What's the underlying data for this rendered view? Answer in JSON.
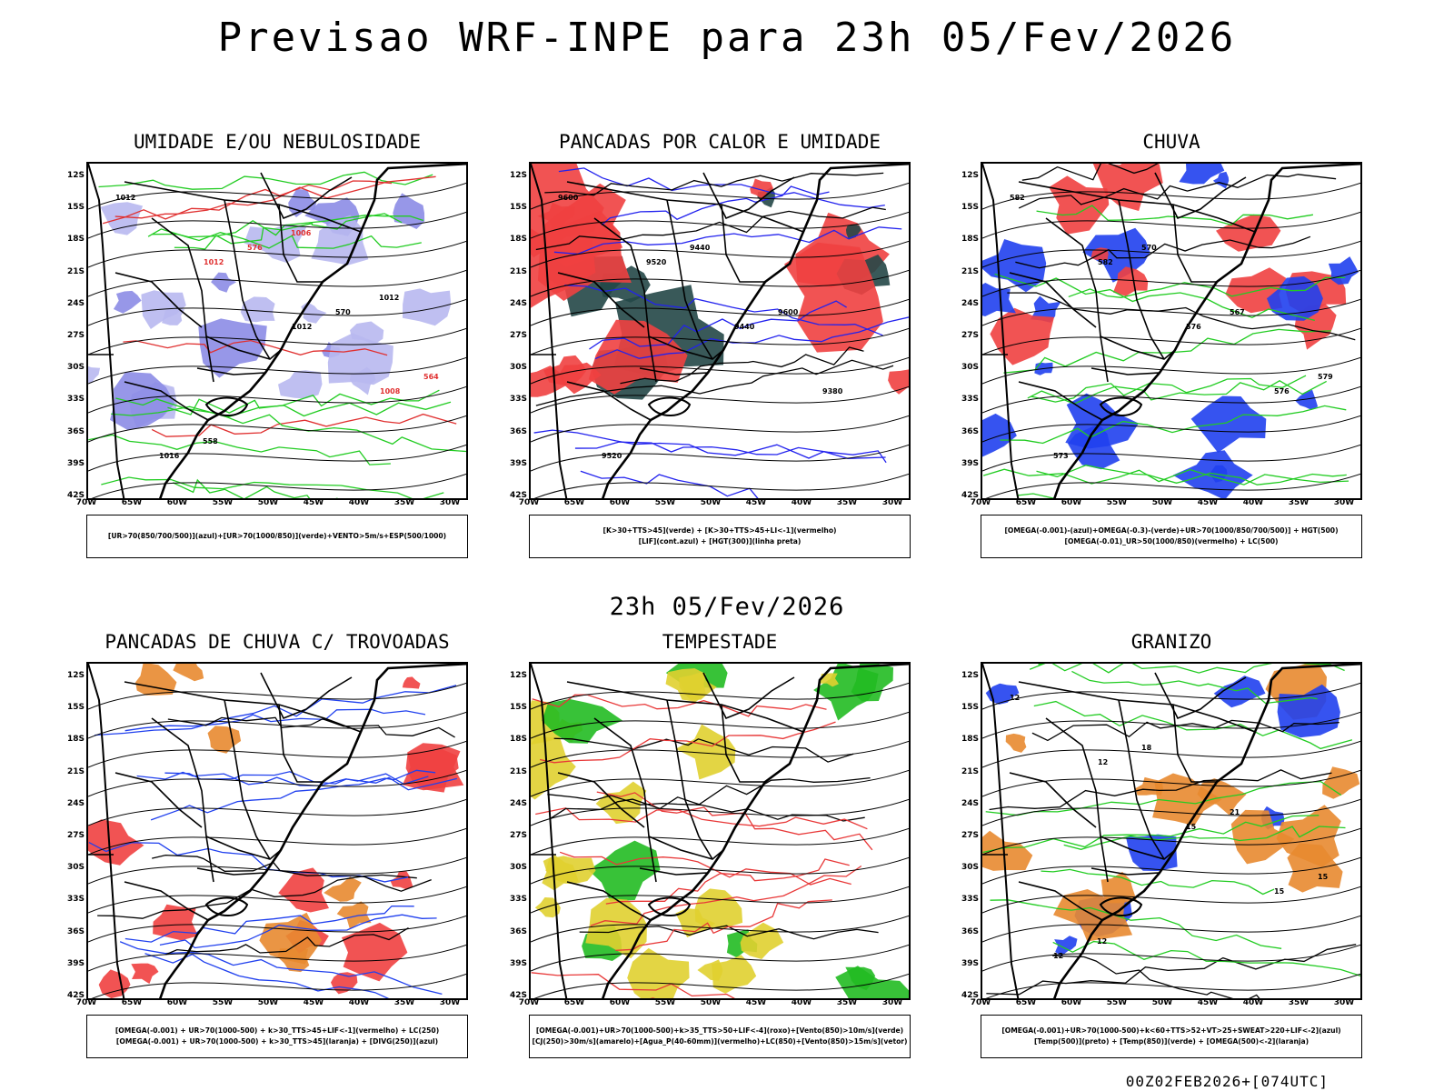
{
  "header": {
    "title": "Previsao WRF-INPE  para 23h 05/Fev/2026",
    "mid_title": "23h 05/Fev/2026",
    "footer": "00Z02FEB2026+[074UTC]"
  },
  "axes": {
    "lat_labels": [
      "12S",
      "15S",
      "18S",
      "21S",
      "24S",
      "27S",
      "30S",
      "33S",
      "36S",
      "39S",
      "42S"
    ],
    "lon_labels": [
      "70W",
      "65W",
      "60W",
      "55W",
      "50W",
      "45W",
      "40W",
      "35W",
      "30W"
    ]
  },
  "panels": [
    {
      "title": "UMIDADE E/OU NEBULOSIDADE",
      "legend": [
        "[UR>70(850/700/500)](azul)+[UR>70(1000/850)](verde)+VENTO>5m/s+ESP(500/1000)"
      ],
      "contour_labels": [
        "1012",
        "1012",
        "1012",
        "1008",
        "1016",
        "576",
        "570",
        "564",
        "558",
        "1006",
        "1012"
      ],
      "colors": {
        "fill1": "#b8b8f0",
        "fill2": "#8c8ce6",
        "line1": "#22cc22",
        "line2": "#e03030"
      }
    },
    {
      "title": "PANCADAS POR CALOR E UMIDADE",
      "legend": [
        "[K>30+TTS>45](verde) + [K>30+TTS>45+LI<-1](vermelho)",
        "[LIF](cont.azul) + [HGT(300)](linha preta)"
      ],
      "contour_labels": [
        "9600",
        "9520",
        "9440",
        "9380",
        "9520",
        "9440",
        "9600"
      ],
      "colors": {
        "fill1": "#f04040",
        "fill2": "#234747",
        "line1": "#2222ee",
        "line2": "#000000"
      }
    },
    {
      "title": "CHUVA",
      "legend": [
        "[OMEGA(-0.001)-(azul)+OMEGA(-0.3)-(verde)+UR>70(1000/850/700/500)] + HGT(500)",
        "[OMEGA(-0.01)_UR>50(1000/850)(vermelho) + LC(500)"
      ],
      "contour_labels": [
        "582",
        "582",
        "576",
        "576",
        "573",
        "570",
        "567",
        "579"
      ],
      "colors": {
        "fill1": "#2040ee",
        "fill2": "#f04040",
        "line1": "#22cc22",
        "line2": "#000000"
      }
    },
    {
      "title": "PANCADAS DE CHUVA C/ TROVOADAS",
      "legend": [
        "[OMEGA(-0.001) + UR>70(1000-500) + k>30_TTS>45+LIF<-1](vermelho) + LC(250)",
        "[OMEGA(-0.001) + UR>70(1000-500) + k>30_TTS>45](laranja) + [DIVG(250)](azul)"
      ],
      "contour_labels": [],
      "colors": {
        "fill1": "#f04040",
        "fill2": "#e88a30",
        "line1": "#2040ee",
        "line2": "#000000"
      }
    },
    {
      "title": "TEMPESTADE",
      "legend": [
        "[OMEGA(-0.001)+UR>70(1000-500)+k>35_TTS>50+LIF<-4](roxo)+[Vento(850)>10m/s](verde)",
        "[CJ(250)>30m/s](amarelo)+[Agua_P(40-60mm)](vermelho)+LC(850)+[Vento(850)>15m/s](vetor)"
      ],
      "contour_labels": [],
      "colors": {
        "fill1": "#e0d030",
        "fill2": "#22bb22",
        "line1": "#e83838",
        "line2": "#000000"
      }
    },
    {
      "title": "GRANIZO",
      "legend": [
        "[OMEGA(-0.001)+UR>70(1000-500)+k<60+TTS>52+VT>25+SWEAT>220+LIF<-2](azul)",
        "[Temp(500)](preto) + [Temp(850)](verde) + [OMEGA(500)<-2](laranja)"
      ],
      "contour_labels": [
        "12",
        "12",
        "15",
        "15",
        "12",
        "18",
        "21",
        "15",
        "12"
      ],
      "colors": {
        "fill1": "#e88a30",
        "fill2": "#2040ee",
        "line1": "#22cc22",
        "line2": "#000000"
      }
    }
  ]
}
